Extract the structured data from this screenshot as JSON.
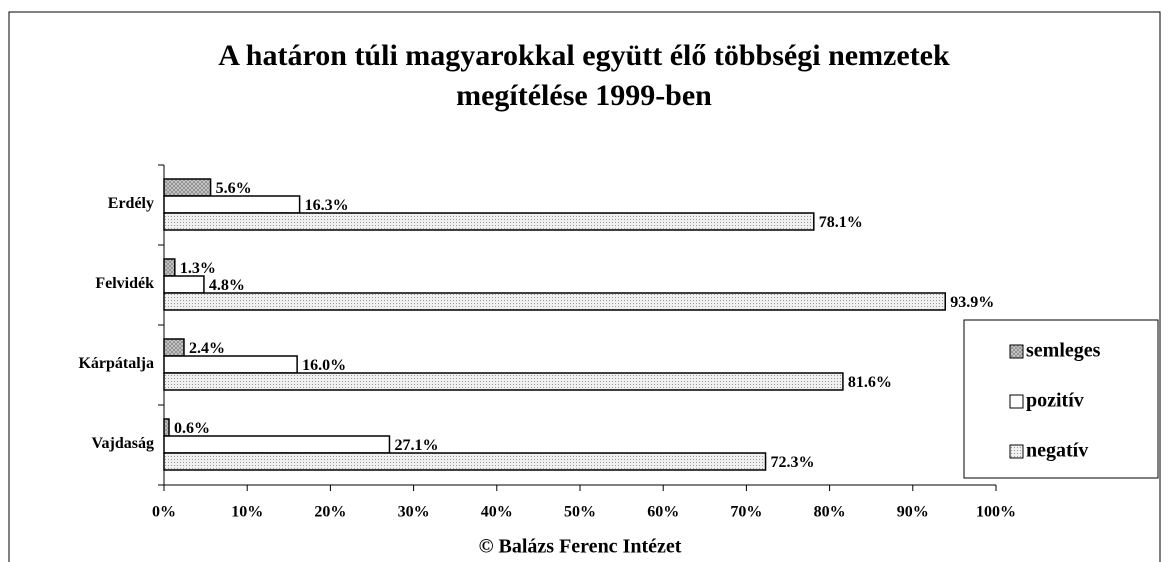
{
  "chart_data": {
    "type": "hbar",
    "title": [
      "A határon túli magyarokkal együtt élő többségi nemzetek",
      "megítélése 1999-ben"
    ],
    "categories": [
      "Erdély",
      "Felvidék",
      "Kárpátalja",
      "Vajdaság"
    ],
    "series": [
      {
        "name": "semleges",
        "color": "#b8b8b8",
        "values": [
          5.6,
          1.3,
          2.4,
          0.6
        ],
        "value_labels": [
          "5.6%",
          "1.3%",
          "2.4%",
          "0.6%"
        ]
      },
      {
        "name": "pozitív",
        "color": "#ffffff",
        "values": [
          16.3,
          4.8,
          16.0,
          27.1
        ],
        "value_labels": [
          "16.3%",
          "4.8%",
          "16.0%",
          "27.1%"
        ]
      },
      {
        "name": "negatív",
        "color": "#e4e4e4",
        "values": [
          78.1,
          93.9,
          81.6,
          72.3
        ],
        "value_labels": [
          "78.1%",
          "93.9%",
          "81.6%",
          "72.3%"
        ]
      }
    ],
    "xlim": [
      0,
      100
    ],
    "xticks": [
      {
        "value": 0,
        "label": "0%"
      },
      {
        "value": 10,
        "label": "10%"
      },
      {
        "value": 20,
        "label": "20%"
      },
      {
        "value": 30,
        "label": "30%"
      },
      {
        "value": 40,
        "label": "40%"
      },
      {
        "value": 50,
        "label": "50%"
      },
      {
        "value": 60,
        "label": "60%"
      },
      {
        "value": 70,
        "label": "70%"
      },
      {
        "value": 80,
        "label": "80%"
      },
      {
        "value": 90,
        "label": "90%"
      },
      {
        "value": 100,
        "label": "100%"
      }
    ],
    "legend": "right",
    "source": "© Balázs Ferenc Intézet"
  }
}
